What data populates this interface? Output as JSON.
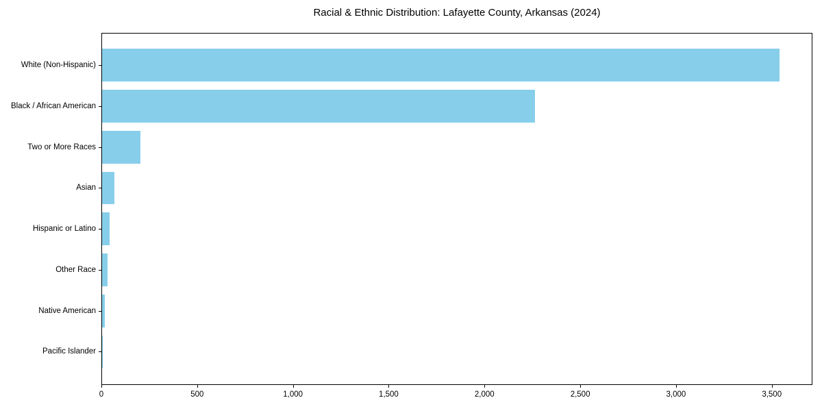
{
  "chart_data": {
    "type": "bar",
    "orientation": "horizontal",
    "title": "Racial & Ethnic Distribution: Lafayette County, Arkansas (2024)",
    "categories": [
      "White (Non-Hispanic)",
      "Black / African American",
      "Two or More Races",
      "Asian",
      "Hispanic or Latino",
      "Other Race",
      "Native American",
      "Pacific Islander"
    ],
    "values": [
      3535,
      2260,
      202,
      63,
      40,
      28,
      13,
      2
    ],
    "xlabel": "",
    "ylabel": "",
    "xlim": [
      0,
      3712
    ],
    "x_ticks": [
      0,
      500,
      1000,
      1500,
      2000,
      2500,
      3000,
      3500
    ],
    "x_tick_labels": [
      "0",
      "500",
      "1,000",
      "1,500",
      "2,000",
      "2,500",
      "3,000",
      "3,500"
    ],
    "bar_color": "#87CEEB",
    "grid": false,
    "legend_position": "none",
    "background_color": "#ffffff"
  }
}
